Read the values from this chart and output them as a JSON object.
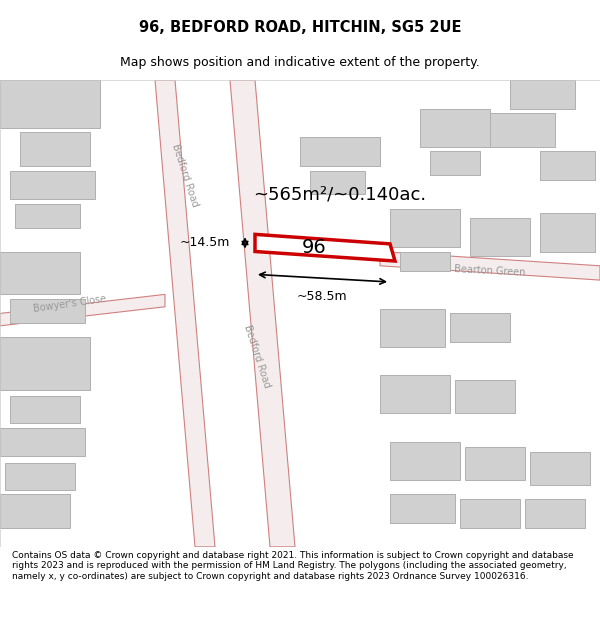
{
  "title": "96, BEDFORD ROAD, HITCHIN, SG5 2UE",
  "subtitle": "Map shows position and indicative extent of the property.",
  "footer": "Contains OS data © Crown copyright and database right 2021. This information is subject to Crown copyright and database rights 2023 and is reproduced with the permission of HM Land Registry. The polygons (including the associated geometry, namely x, y co-ordinates) are subject to Crown copyright and database rights 2023 Ordnance Survey 100026316.",
  "bg_color": "#f5f5f5",
  "map_bg": "#ffffff",
  "building_fill": "#d3d3d3",
  "building_edge": "#c0c0c0",
  "road_color": "#e8a0a0",
  "road_fill": "#f5e8e8",
  "highlight_color": "#cc0000",
  "label_area": "~565m²/~0.140ac.",
  "label_width": "~58.5m",
  "label_height": "~14.5m",
  "label_number": "96",
  "street_labels": [
    "Bedford Road",
    "Bedford Road",
    "Bearton Green",
    "Bowyer's Close"
  ],
  "figsize": [
    6.0,
    6.25
  ],
  "dpi": 100
}
